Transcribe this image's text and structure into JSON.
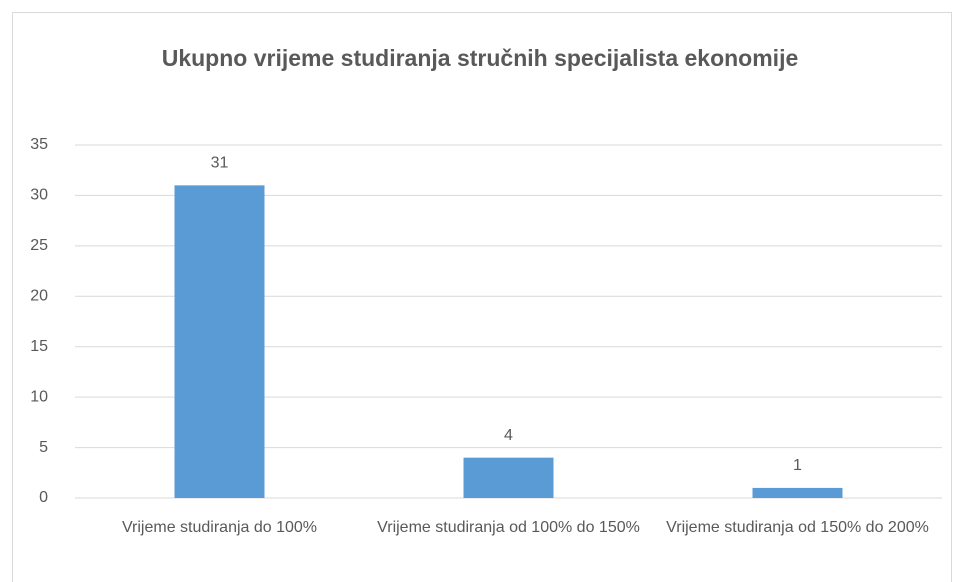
{
  "chart_data": {
    "type": "bar",
    "title": "Ukupno vrijeme studiranja stručnih specijalista ekonomije",
    "categories": [
      "Vrijeme studiranja do 100%",
      "Vrijeme studiranja od 100% do 150%",
      "Vrijeme studiranja od 150% do 200%"
    ],
    "values": [
      31,
      4,
      1
    ],
    "color": "#5b9bd5",
    "ylim": [
      0,
      35
    ],
    "yticks": [
      0,
      5,
      10,
      15,
      20,
      25,
      30,
      35
    ],
    "grid": true
  }
}
